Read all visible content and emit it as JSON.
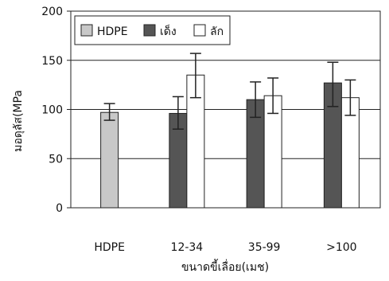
{
  "chart_data": {
    "type": "bar",
    "categories": [
      "HDPE",
      "12-34",
      "35-99",
      ">100"
    ],
    "series": [
      {
        "name": "HDPE",
        "color": "#c8c8c8",
        "values": [
          97,
          null,
          null,
          null
        ],
        "err_low": [
          89,
          null,
          null,
          null
        ],
        "err_high": [
          106,
          null,
          null,
          null
        ]
      },
      {
        "name": "เด็ง",
        "color": "#555555",
        "values": [
          null,
          96,
          110,
          127
        ],
        "err_low": [
          null,
          80,
          92,
          103
        ],
        "err_high": [
          null,
          113,
          128,
          148
        ]
      },
      {
        "name": "ลัก",
        "color": "#ffffff",
        "values": [
          null,
          135,
          114,
          112
        ],
        "err_low": [
          null,
          112,
          96,
          94
        ],
        "err_high": [
          null,
          157,
          132,
          130
        ]
      }
    ],
    "ylabel": "มอดุลัส(MPa",
    "xlabel": "ขนาดขี้เลื่อย(เมช)",
    "ylim": [
      0,
      200
    ],
    "yticks": [
      "0",
      "50",
      "100",
      "150",
      "200"
    ],
    "grid": true,
    "legend_position": "top-left"
  }
}
